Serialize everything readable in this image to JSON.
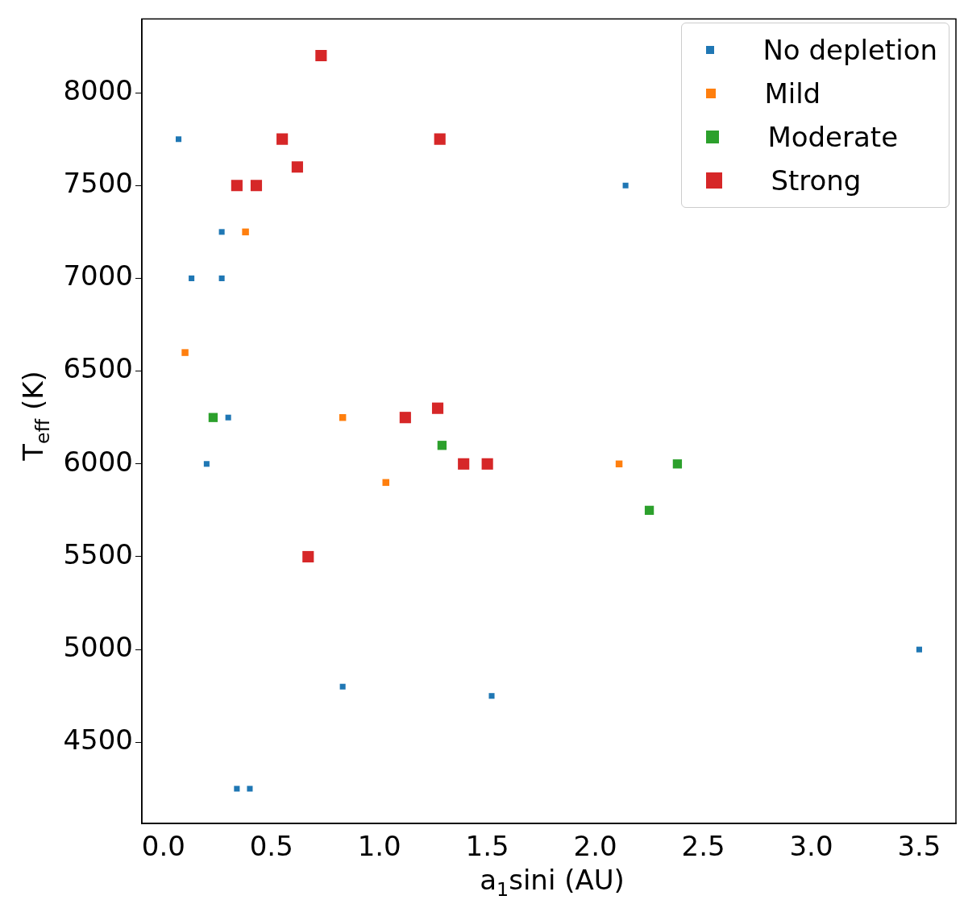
{
  "chart_data": {
    "type": "scatter",
    "xlabel": "a$_{1}$sini (AU)",
    "ylabel": "T$_{eff}$ (K)",
    "xlim": [
      -0.1,
      3.67
    ],
    "xticks": [
      {
        "value": 0,
        "label": "0.0"
      },
      {
        "value": 0.5,
        "label": "0.5"
      },
      {
        "value": 1,
        "label": "1.0"
      },
      {
        "value": 1.5,
        "label": "1.5"
      },
      {
        "value": 2,
        "label": "2.0"
      },
      {
        "value": 2.5,
        "label": "2.5"
      },
      {
        "value": 3,
        "label": "3.0"
      },
      {
        "value": 3.5,
        "label": "3.5"
      }
    ],
    "ylim": [
      4063,
      8398
    ],
    "yticks": [
      4500,
      5000,
      5500,
      6000,
      6500,
      7000,
      7500,
      8000
    ],
    "grid": false,
    "legend": "top right",
    "marker": "square",
    "series": [
      {
        "name": "No depletion",
        "color": "#1f77b4",
        "x": [
          0.07,
          0.27,
          0.13,
          0.27,
          0.3,
          0.2,
          2.14,
          0.83,
          1.52,
          0.34,
          0.4,
          3.5
        ],
        "values": [
          7750,
          7250,
          7000,
          7000,
          6250,
          6000,
          7500,
          4800,
          4750,
          4250,
          4250,
          5000
        ]
      },
      {
        "name": "Mild",
        "color": "#ff7f0e",
        "x": [
          0.38,
          0.1,
          0.83,
          1.03,
          2.11
        ],
        "values": [
          7250,
          6600,
          6250,
          5900,
          6000
        ]
      },
      {
        "name": "Moderate",
        "color": "#2ca02c",
        "x": [
          0.23,
          1.29,
          2.38,
          2.25
        ],
        "values": [
          6250,
          6100,
          6000,
          5750
        ]
      },
      {
        "name": "Strong",
        "color": "#d62728",
        "x": [
          0.73,
          0.55,
          1.28,
          0.62,
          0.34,
          0.43,
          1.27,
          1.12,
          1.39,
          1.5,
          0.67
        ],
        "values": [
          8200,
          7750,
          7750,
          7600,
          7500,
          7500,
          6300,
          6250,
          6000,
          6000,
          5500
        ]
      }
    ]
  }
}
